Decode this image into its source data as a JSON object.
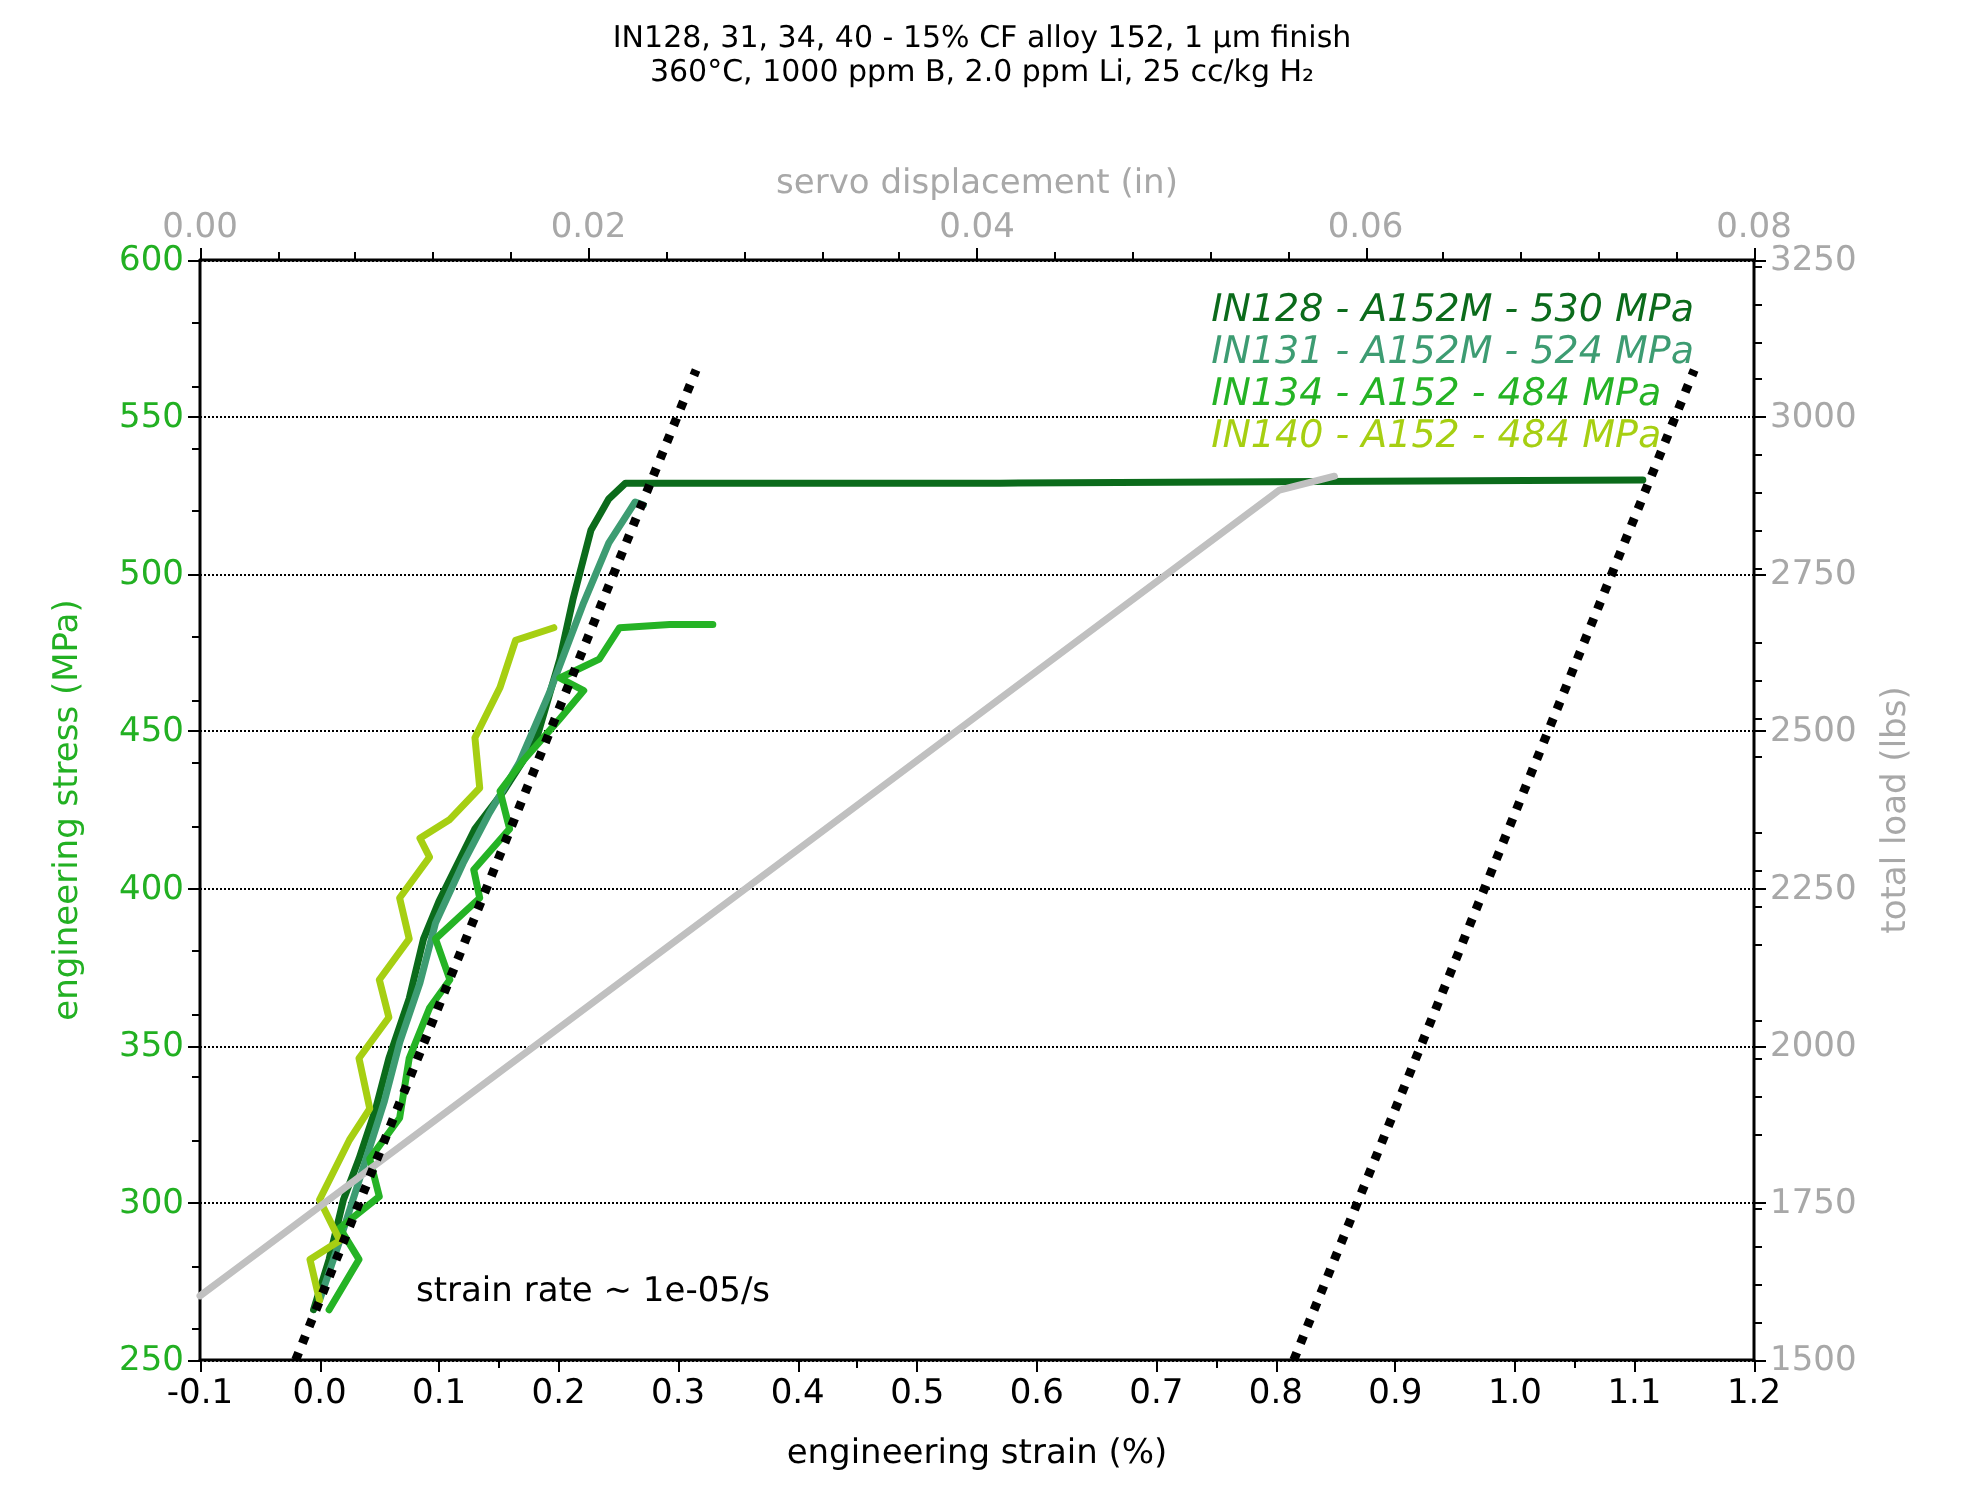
{
  "chart_data": {
    "type": "line",
    "title": "IN128, 31, 34, 40 - 15% CF alloy 152, 1 μm finish",
    "subtitle": "360°C, 1000 ppm B, 2.0 ppm Li, 25 cc/kg H₂",
    "xlabel": "engineering strain (%)",
    "ylabel": "engineering stress (MPa)",
    "y2label": "total load (lbs)",
    "x2label": "servo displacement (in)",
    "xlim": [
      -0.1,
      1.2
    ],
    "xticks": [
      -0.1,
      {
        "value": 0,
        "label": "0.0"
      },
      0.1,
      0.2,
      0.3,
      0.4,
      0.5,
      0.6,
      0.7,
      0.8,
      0.9,
      {
        "value": 1,
        "label": "1.0"
      },
      1.1,
      1.2
    ],
    "x2lim": [
      0,
      0.08
    ],
    "x2ticks": [
      {
        "value": 0,
        "label": "0.00"
      },
      {
        "value": 0.02,
        "label": "0.02"
      },
      {
        "value": 0.04,
        "label": "0.04"
      },
      {
        "value": 0.06,
        "label": "0.06"
      },
      {
        "value": 0.08,
        "label": "0.08"
      }
    ],
    "ylim": [
      250,
      600
    ],
    "yticks": [
      250,
      300,
      350,
      400,
      450,
      500,
      550,
      600
    ],
    "y2lim": [
      1500,
      3250
    ],
    "y2ticks": [
      1500,
      1750,
      2000,
      2250,
      2500,
      2750,
      3000,
      3250
    ],
    "grid": "y",
    "legend": "top right",
    "marker": "none",
    "annotations": [
      "strain rate ~ 1e-05/s"
    ],
    "series": [
      {
        "name": "IN128 - A152M - 530 MPa",
        "color": "#0b6b1b",
        "x": [
          -0.005,
          0.008,
          0.02,
          0.033,
          0.047,
          0.058,
          0.075,
          0.087,
          0.1,
          0.13,
          0.154,
          0.181,
          0.201,
          0.212,
          0.227,
          0.242,
          0.256,
          0.569,
          1.107
        ],
        "values": [
          266,
          282,
          301,
          314,
          330,
          346,
          365,
          384,
          396,
          419,
          431,
          447,
          473,
          492,
          514,
          524,
          529,
          529,
          530
        ]
      },
      {
        "name": "IN131 - A152M - 524 MPa",
        "color": "#3d9c72",
        "x": [
          0,
          0.017,
          0.033,
          0.054,
          0.067,
          0.084,
          0.097,
          0.12,
          0.142,
          0.167,
          0.192,
          0.221,
          0.242,
          0.264,
          0.271
        ],
        "values": [
          269,
          288,
          307,
          332,
          351,
          370,
          389,
          408,
          424,
          440,
          462,
          491,
          510,
          523,
          522
        ]
      },
      {
        "name": "IN134 - A152 - 484 MPa",
        "color": "#25b325",
        "x": [
          0.008,
          0.033,
          0.017,
          0.05,
          0.042,
          0.067,
          0.075,
          0.092,
          0.109,
          0.097,
          0.134,
          0.129,
          0.159,
          0.151,
          0.171,
          0.201,
          0.221,
          0.201,
          0.234,
          0.251,
          0.293,
          0.329
        ],
        "values": [
          266,
          282,
          292,
          302,
          314,
          327,
          346,
          362,
          371,
          384,
          397,
          406,
          419,
          431,
          441,
          454,
          463,
          467,
          473,
          483,
          484,
          484
        ]
      },
      {
        "name": "IN140 - A152 - 484 MPa",
        "color": "#a6cf12",
        "x": [
          0,
          -0.008,
          0.017,
          0,
          0.025,
          0.042,
          0.033,
          0.058,
          0.05,
          0.075,
          0.067,
          0.092,
          0.084,
          0.109,
          0.134,
          0.13,
          0.151,
          0.164,
          0.196
        ],
        "values": [
          269,
          282,
          288,
          301,
          320,
          330,
          346,
          359,
          371,
          384,
          397,
          410,
          416,
          422,
          432,
          448,
          464,
          479,
          483
        ]
      },
      {
        "color": "#000000",
        "line_style": "dotted",
        "x": [
          -0.02,
          0.315
        ],
        "values": [
          250,
          565
        ]
      },
      {
        "color": "#000000",
        "line_style": "dotted",
        "x": [
          0.815,
          1.15
        ],
        "values": [
          250,
          565
        ]
      },
      {
        "color": "#c0c0c0",
        "axis": "y2",
        "x": [
          -0.1,
          0.803,
          0.849
        ],
        "values": [
          1602,
          2884,
          2906
        ]
      }
    ]
  }
}
